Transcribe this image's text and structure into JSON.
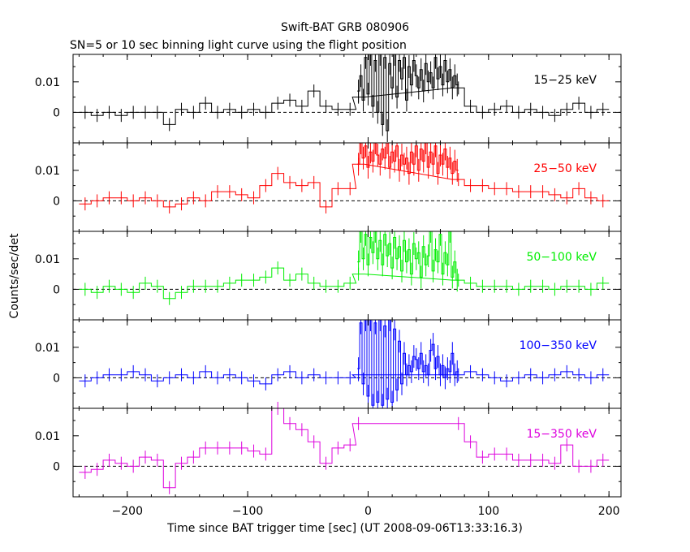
{
  "chart_data": {
    "type": "line",
    "title": "Swift-BAT GRB 080906",
    "subtitle": "SN=5 or 10 sec binning light curve using the flight position",
    "xlabel": "Time since BAT trigger time [sec] (UT 2008-09-06T13:33:16.3)",
    "ylabel": "Counts/sec/det",
    "xlim": [
      -245,
      210
    ],
    "ylim": [
      -0.01,
      0.019
    ],
    "x_ticks": [
      "−200",
      "−100",
      "0",
      "100",
      "200"
    ],
    "y_ticks": [
      "0",
      "0.01"
    ],
    "panels": [
      {
        "label": "15−25 keV",
        "color": "#000000",
        "binned": {
          "x": [
            -235,
            -225,
            -215,
            -205,
            -195,
            -185,
            -175,
            -165,
            -155,
            -145,
            -135,
            -125,
            -115,
            -105,
            -95,
            -85,
            -75,
            -65,
            -55,
            -45,
            -35,
            -25,
            -15,
            -8,
            75,
            85,
            95,
            105,
            115,
            125,
            135,
            145,
            155,
            165,
            175,
            185,
            195
          ],
          "y": [
            0.0,
            -0.001,
            0.0,
            -0.001,
            0.0,
            0.0,
            0.0,
            -0.004,
            0.001,
            0.0,
            0.003,
            0.0,
            0.001,
            0.0,
            0.001,
            0.0,
            0.003,
            0.004,
            0.002,
            0.007,
            0.002,
            0.001,
            0.001,
            0.005,
            0.008,
            0.002,
            0.0,
            0.001,
            0.002,
            0.0,
            0.001,
            0.0,
            -0.001,
            0.001,
            0.003,
            0.0,
            0.001
          ]
        },
        "burst": {
          "x": [
            -8,
            -6,
            -4,
            -2,
            0,
            2,
            4,
            6,
            8,
            10,
            12,
            14,
            16,
            18,
            20,
            22,
            24,
            26,
            28,
            30,
            32,
            34,
            36,
            38,
            40,
            42,
            44,
            46,
            48,
            50,
            52,
            54,
            56,
            58,
            60,
            62,
            64,
            66,
            68,
            70,
            72,
            74
          ],
          "y": [
            0.007,
            0.012,
            0.004,
            0.018,
            0.006,
            0.019,
            0.002,
            0.017,
            0.0,
            0.019,
            -0.004,
            0.018,
            -0.006,
            0.016,
            0.008,
            0.019,
            0.005,
            0.017,
            0.011,
            0.018,
            0.004,
            0.015,
            0.009,
            0.017,
            0.012,
            0.008,
            0.014,
            0.007,
            0.016,
            0.01,
            0.013,
            0.008,
            0.018,
            0.011,
            0.015,
            0.009,
            0.017,
            0.01,
            0.014,
            0.008,
            0.012,
            0.009
          ]
        }
      },
      {
        "label": "25−50 keV",
        "color": "#ff0000",
        "binned": {
          "x": [
            -235,
            -225,
            -215,
            -205,
            -195,
            -185,
            -175,
            -165,
            -155,
            -145,
            -135,
            -125,
            -115,
            -105,
            -95,
            -85,
            -75,
            -65,
            -55,
            -45,
            -35,
            -25,
            -15,
            -8,
            75,
            85,
            95,
            105,
            115,
            125,
            135,
            145,
            155,
            165,
            175,
            185,
            195
          ],
          "y": [
            -0.001,
            0.0,
            0.001,
            0.001,
            0.0,
            0.001,
            0.0,
            -0.002,
            -0.001,
            0.001,
            0.0,
            0.003,
            0.003,
            0.002,
            0.001,
            0.005,
            0.009,
            0.006,
            0.005,
            0.006,
            -0.002,
            0.004,
            0.004,
            0.012,
            0.007,
            0.005,
            0.005,
            0.004,
            0.004,
            0.003,
            0.003,
            0.003,
            0.002,
            0.001,
            0.004,
            0.001,
            0.0
          ]
        },
        "burst": {
          "x": [
            -8,
            -6,
            -4,
            -2,
            0,
            2,
            4,
            6,
            8,
            10,
            12,
            14,
            16,
            18,
            20,
            22,
            24,
            26,
            28,
            30,
            32,
            34,
            36,
            38,
            40,
            42,
            44,
            46,
            48,
            50,
            52,
            54,
            56,
            58,
            60,
            62,
            64,
            66,
            68,
            70,
            72,
            74
          ],
          "y": [
            0.012,
            0.019,
            0.014,
            0.018,
            0.011,
            0.016,
            0.013,
            0.019,
            0.015,
            0.012,
            0.017,
            0.014,
            0.019,
            0.011,
            0.016,
            0.013,
            0.018,
            0.01,
            0.015,
            0.012,
            0.014,
            0.009,
            0.016,
            0.012,
            0.018,
            0.01,
            0.017,
            0.013,
            0.019,
            0.011,
            0.016,
            0.012,
            0.018,
            0.009,
            0.015,
            0.012,
            0.017,
            0.011,
            0.014,
            0.009,
            0.013,
            0.01
          ]
        }
      },
      {
        "label": "50−100 keV",
        "color": "#00ee00",
        "binned": {
          "x": [
            -235,
            -225,
            -215,
            -205,
            -195,
            -185,
            -175,
            -165,
            -155,
            -145,
            -135,
            -125,
            -115,
            -105,
            -95,
            -85,
            -75,
            -65,
            -55,
            -45,
            -35,
            -25,
            -15,
            -8,
            75,
            85,
            95,
            105,
            115,
            125,
            135,
            145,
            155,
            165,
            175,
            185,
            195
          ],
          "y": [
            0.0,
            -0.001,
            0.001,
            0.0,
            -0.001,
            0.002,
            0.001,
            -0.003,
            -0.001,
            0.001,
            0.001,
            0.001,
            0.002,
            0.003,
            0.003,
            0.004,
            0.007,
            0.003,
            0.005,
            0.002,
            0.001,
            0.001,
            0.002,
            0.005,
            0.003,
            0.002,
            0.001,
            0.001,
            0.001,
            0.0,
            0.001,
            0.001,
            0.0,
            0.001,
            0.001,
            0.0,
            0.002
          ]
        },
        "burst": {
          "x": [
            -8,
            -6,
            -4,
            -2,
            0,
            2,
            4,
            6,
            8,
            10,
            12,
            14,
            16,
            18,
            20,
            22,
            24,
            26,
            28,
            30,
            32,
            34,
            36,
            38,
            40,
            42,
            44,
            46,
            48,
            50,
            52,
            54,
            56,
            58,
            60,
            62,
            64,
            66,
            68,
            70,
            72,
            74
          ],
          "y": [
            0.009,
            0.019,
            0.01,
            0.018,
            0.008,
            0.017,
            0.012,
            0.019,
            0.01,
            0.016,
            0.008,
            0.018,
            0.011,
            0.015,
            0.007,
            0.017,
            0.01,
            0.014,
            0.006,
            0.016,
            0.009,
            0.013,
            0.005,
            0.015,
            0.01,
            0.012,
            0.004,
            0.014,
            0.008,
            0.011,
            0.019,
            0.006,
            0.013,
            0.009,
            0.018,
            0.005,
            0.012,
            0.008,
            0.019,
            0.004,
            0.009,
            0.003
          ]
        }
      },
      {
        "label": "100−350 keV",
        "color": "#0000ff",
        "binned": {
          "x": [
            -235,
            -225,
            -215,
            -205,
            -195,
            -185,
            -175,
            -165,
            -155,
            -145,
            -135,
            -125,
            -115,
            -105,
            -95,
            -85,
            -75,
            -65,
            -55,
            -45,
            -35,
            -25,
            -15,
            -8,
            75,
            85,
            95,
            105,
            115,
            125,
            135,
            145,
            155,
            165,
            175,
            185,
            195
          ],
          "y": [
            -0.001,
            0.0,
            0.001,
            0.001,
            0.002,
            0.001,
            -0.001,
            0.0,
            0.001,
            0.0,
            0.002,
            0.0,
            0.001,
            0.0,
            -0.001,
            -0.002,
            0.001,
            0.002,
            0.0,
            0.001,
            0.0,
            0.0,
            0.0,
            0.001,
            0.001,
            0.002,
            0.001,
            0.0,
            -0.001,
            0.0,
            0.001,
            0.0,
            0.001,
            0.002,
            0.001,
            0.0,
            0.001
          ]
        },
        "burst": {
          "x": [
            -8,
            -6,
            -4,
            -2,
            0,
            2,
            4,
            6,
            8,
            10,
            12,
            14,
            16,
            18,
            20,
            22,
            24,
            26,
            28,
            30,
            32,
            34,
            36,
            38,
            40,
            42,
            44,
            46,
            48,
            50,
            52,
            54,
            56,
            58,
            60,
            62,
            64,
            66,
            68,
            70,
            72,
            74
          ],
          "y": [
            0.003,
            0.018,
            -0.002,
            0.019,
            -0.006,
            0.019,
            -0.009,
            0.018,
            -0.008,
            0.019,
            -0.009,
            0.017,
            -0.007,
            0.019,
            -0.008,
            0.016,
            -0.004,
            0.012,
            -0.002,
            0.008,
            0.001,
            0.004,
            0.002,
            0.007,
            0.006,
            0.003,
            0.008,
            0.002,
            0.004,
            0.001,
            0.009,
            0.011,
            0.003,
            0.007,
            0.001,
            0.004,
            0.0,
            0.003,
            0.002,
            0.008,
            0.001,
            0.002
          ]
        }
      },
      {
        "label": "15−350 keV",
        "color": "#dd00dd",
        "binned": {
          "x": [
            -235,
            -225,
            -215,
            -205,
            -195,
            -185,
            -175,
            -165,
            -155,
            -145,
            -135,
            -125,
            -115,
            -105,
            -95,
            -85,
            -75,
            -65,
            -55,
            -45,
            -35,
            -25,
            -15,
            -8,
            75,
            85,
            95,
            105,
            115,
            125,
            135,
            145,
            155,
            165,
            175,
            185,
            195
          ],
          "y": [
            -0.002,
            -0.001,
            0.002,
            0.001,
            0.0,
            0.003,
            0.002,
            -0.007,
            0.001,
            0.003,
            0.006,
            0.006,
            0.006,
            0.006,
            0.005,
            0.004,
            0.019,
            0.014,
            0.012,
            0.008,
            0.001,
            0.006,
            0.007,
            0.014,
            0.014,
            0.008,
            0.003,
            0.004,
            0.004,
            0.002,
            0.002,
            0.002,
            0.001,
            0.007,
            0.0,
            0.0,
            0.002
          ]
        }
      }
    ]
  }
}
